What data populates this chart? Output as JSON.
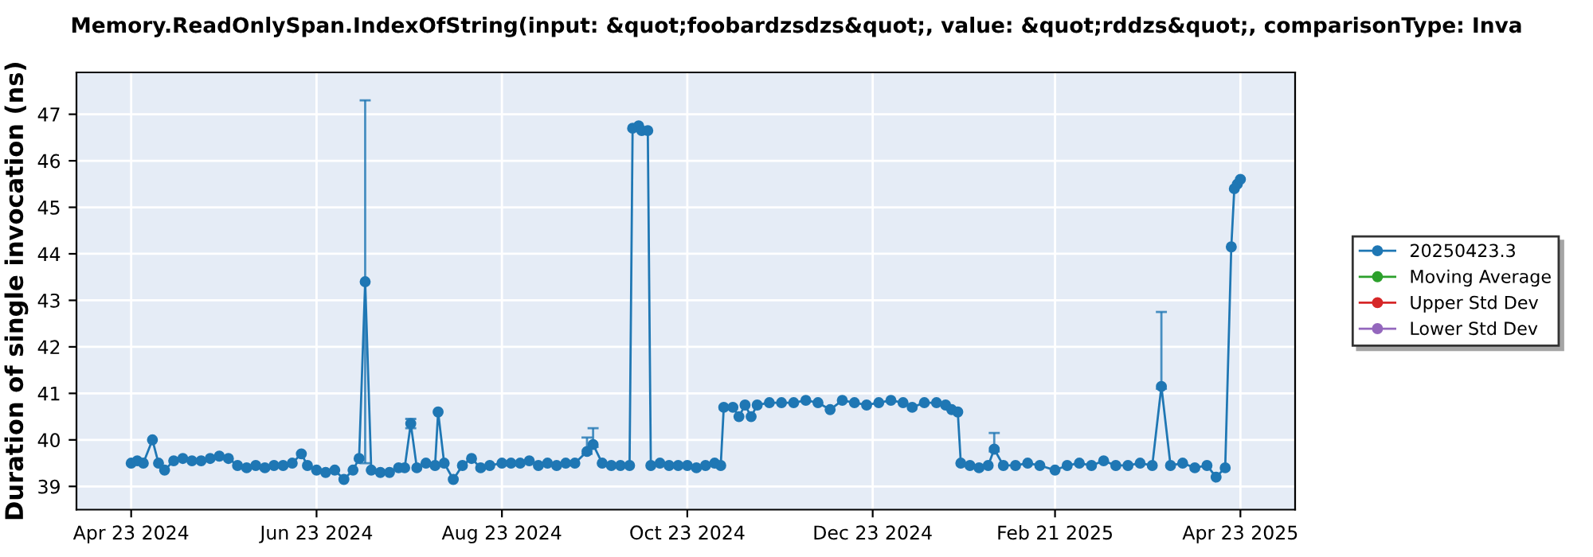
{
  "chart_data": {
    "type": "line",
    "title": "Memory.ReadOnlySpan.IndexOfString(input: &quot;foobardzsdzs&quot;, value: &quot;rddzs&quot;, comparisonType: Inva",
    "ylabel": "Duration of single invocation (ns)",
    "x": [
      "2024-04-23",
      "2024-04-25",
      "2024-04-27",
      "2024-04-30",
      "2024-05-02",
      "2024-05-04",
      "2024-05-07",
      "2024-05-10",
      "2024-05-13",
      "2024-05-16",
      "2024-05-19",
      "2024-05-22",
      "2024-05-25",
      "2024-05-28",
      "2024-05-31",
      "2024-06-03",
      "2024-06-06",
      "2024-06-09",
      "2024-06-12",
      "2024-06-15",
      "2024-06-18",
      "2024-06-20",
      "2024-06-23",
      "2024-06-26",
      "2024-06-29",
      "2024-07-02",
      "2024-07-05",
      "2024-07-07",
      "2024-07-09",
      "2024-07-11",
      "2024-07-14",
      "2024-07-17",
      "2024-07-20",
      "2024-07-22",
      "2024-07-24",
      "2024-07-26",
      "2024-07-29",
      "2024-08-01",
      "2024-08-02",
      "2024-08-04",
      "2024-08-07",
      "2024-08-10",
      "2024-08-13",
      "2024-08-16",
      "2024-08-19",
      "2024-08-23",
      "2024-08-26",
      "2024-08-29",
      "2024-09-01",
      "2024-09-04",
      "2024-09-07",
      "2024-09-10",
      "2024-09-13",
      "2024-09-16",
      "2024-09-20",
      "2024-09-22",
      "2024-09-25",
      "2024-09-28",
      "2024-10-01",
      "2024-10-04",
      "2024-10-05",
      "2024-10-07",
      "2024-10-08",
      "2024-10-10",
      "2024-10-11",
      "2024-10-14",
      "2024-10-17",
      "2024-10-20",
      "2024-10-23",
      "2024-10-26",
      "2024-10-29",
      "2024-11-01",
      "2024-11-03",
      "2024-11-04",
      "2024-11-07",
      "2024-11-09",
      "2024-11-11",
      "2024-11-13",
      "2024-11-15",
      "2024-11-19",
      "2024-11-23",
      "2024-11-27",
      "2024-12-01",
      "2024-12-05",
      "2024-12-09",
      "2024-12-13",
      "2024-12-17",
      "2024-12-21",
      "2024-12-25",
      "2024-12-29",
      "2025-01-02",
      "2025-01-05",
      "2025-01-09",
      "2025-01-13",
      "2025-01-16",
      "2025-01-18",
      "2025-01-20",
      "2025-01-21",
      "2025-01-24",
      "2025-01-27",
      "2025-01-30",
      "2025-02-01",
      "2025-02-04",
      "2025-02-08",
      "2025-02-12",
      "2025-02-16",
      "2025-02-21",
      "2025-02-25",
      "2025-03-01",
      "2025-03-05",
      "2025-03-09",
      "2025-03-13",
      "2025-03-17",
      "2025-03-21",
      "2025-03-25",
      "2025-03-28",
      "2025-03-31",
      "2025-04-04",
      "2025-04-08",
      "2025-04-12",
      "2025-04-15",
      "2025-04-18",
      "2025-04-20",
      "2025-04-21",
      "2025-04-22",
      "2025-04-23"
    ],
    "series": [
      {
        "name": "20250423.3",
        "color": "#1f77b4",
        "values": [
          39.5,
          39.55,
          39.5,
          40.0,
          39.5,
          39.35,
          39.55,
          39.6,
          39.55,
          39.55,
          39.6,
          39.65,
          39.6,
          39.45,
          39.4,
          39.45,
          39.4,
          39.45,
          39.45,
          39.5,
          39.7,
          39.45,
          39.35,
          39.3,
          39.35,
          39.15,
          39.35,
          39.6,
          43.4,
          39.35,
          39.3,
          39.3,
          39.4,
          39.4,
          40.35,
          39.4,
          39.5,
          39.45,
          40.6,
          39.5,
          39.15,
          39.45,
          39.6,
          39.4,
          39.45,
          39.5,
          39.5,
          39.5,
          39.55,
          39.45,
          39.5,
          39.45,
          39.5,
          39.5,
          39.75,
          39.9,
          39.5,
          39.45,
          39.45,
          39.45,
          46.7,
          46.75,
          46.65,
          46.65,
          39.45,
          39.5,
          39.45,
          39.45,
          39.45,
          39.4,
          39.45,
          39.5,
          39.45,
          40.7,
          40.7,
          40.5,
          40.75,
          40.5,
          40.75,
          40.8,
          40.8,
          40.8,
          40.85,
          40.8,
          40.65,
          40.85,
          40.8,
          40.75,
          40.8,
          40.85,
          40.8,
          40.7,
          40.8,
          40.8,
          40.75,
          40.65,
          40.6,
          39.5,
          39.45,
          39.4,
          39.45,
          39.8,
          39.45,
          39.45,
          39.5,
          39.45,
          39.35,
          39.45,
          39.5,
          39.45,
          39.55,
          39.45,
          39.45,
          39.5,
          39.45,
          41.15,
          39.45,
          39.5,
          39.4,
          39.45,
          39.2,
          39.4,
          44.15,
          45.4,
          45.5,
          45.6
        ],
        "errors": [
          null,
          null,
          null,
          null,
          null,
          null,
          null,
          null,
          null,
          null,
          null,
          null,
          null,
          null,
          null,
          null,
          null,
          null,
          null,
          null,
          null,
          null,
          null,
          null,
          null,
          null,
          null,
          null,
          [
            39.5,
            47.3
          ],
          null,
          null,
          null,
          null,
          null,
          [
            40.25,
            40.45
          ],
          null,
          null,
          null,
          null,
          null,
          null,
          null,
          null,
          null,
          null,
          null,
          null,
          null,
          null,
          null,
          null,
          null,
          null,
          null,
          [
            39.7,
            40.05
          ],
          [
            39.85,
            40.25
          ],
          null,
          null,
          null,
          null,
          null,
          null,
          null,
          null,
          null,
          null,
          null,
          null,
          null,
          null,
          null,
          null,
          null,
          null,
          null,
          null,
          null,
          null,
          null,
          null,
          null,
          null,
          null,
          null,
          null,
          null,
          null,
          null,
          null,
          null,
          null,
          null,
          null,
          null,
          null,
          null,
          null,
          null,
          null,
          null,
          null,
          [
            39.75,
            40.15
          ],
          null,
          null,
          null,
          null,
          null,
          null,
          null,
          null,
          null,
          null,
          null,
          null,
          null,
          [
            41.1,
            42.75
          ],
          null,
          null,
          null,
          null,
          null,
          null,
          null,
          null,
          null,
          null
        ]
      },
      {
        "name": "Moving Average",
        "color": "#2ca02c",
        "values": [
          null,
          null,
          null,
          null,
          null,
          null,
          null,
          null,
          null,
          null,
          null,
          null,
          null,
          null,
          null,
          null,
          null,
          null,
          null,
          null,
          null,
          null,
          null,
          null,
          null,
          null,
          null,
          null,
          null,
          null,
          null,
          null,
          null,
          null,
          null,
          null,
          null,
          null,
          null,
          null,
          null,
          null,
          null,
          null,
          null,
          null,
          null,
          null,
          null,
          null,
          null,
          null,
          null,
          null,
          null,
          null,
          null,
          null,
          null,
          null,
          null,
          null,
          null,
          null,
          null,
          null,
          null,
          null,
          null,
          null,
          null,
          null,
          null,
          null,
          null,
          null,
          null,
          null,
          null,
          null,
          null,
          null,
          null,
          null,
          null,
          null,
          null,
          null,
          null,
          null,
          null,
          null,
          null,
          null,
          null,
          null,
          null,
          null,
          null,
          null,
          null,
          null,
          null,
          null,
          null,
          null,
          null,
          null,
          null,
          null,
          null,
          null,
          null,
          null,
          null,
          null,
          null,
          null,
          null,
          null,
          null,
          null,
          null,
          null,
          null,
          null
        ]
      },
      {
        "name": "Upper Std Dev",
        "color": "#d62728",
        "values": [
          null,
          null,
          null,
          null,
          null,
          null,
          null,
          null,
          null,
          null,
          null,
          null,
          null,
          null,
          null,
          null,
          null,
          null,
          null,
          null,
          null,
          null,
          null,
          null,
          null,
          null,
          null,
          null,
          null,
          null,
          null,
          null,
          null,
          null,
          null,
          null,
          null,
          null,
          null,
          null,
          null,
          null,
          null,
          null,
          null,
          null,
          null,
          null,
          null,
          null,
          null,
          null,
          null,
          null,
          null,
          null,
          null,
          null,
          null,
          null,
          null,
          null,
          null,
          null,
          null,
          null,
          null,
          null,
          null,
          null,
          null,
          null,
          null,
          null,
          null,
          null,
          null,
          null,
          null,
          null,
          null,
          null,
          null,
          null,
          null,
          null,
          null,
          null,
          null,
          null,
          null,
          null,
          null,
          null,
          null,
          null,
          null,
          null,
          null,
          null,
          null,
          null,
          null,
          null,
          null,
          null,
          null,
          null,
          null,
          null,
          null,
          null,
          null,
          null,
          null,
          null,
          null,
          null,
          null,
          null,
          null,
          null,
          null,
          null,
          null,
          null
        ]
      },
      {
        "name": "Lower Std Dev",
        "color": "#9467bd",
        "values": [
          null,
          null,
          null,
          null,
          null,
          null,
          null,
          null,
          null,
          null,
          null,
          null,
          null,
          null,
          null,
          null,
          null,
          null,
          null,
          null,
          null,
          null,
          null,
          null,
          null,
          null,
          null,
          null,
          null,
          null,
          null,
          null,
          null,
          null,
          null,
          null,
          null,
          null,
          null,
          null,
          null,
          null,
          null,
          null,
          null,
          null,
          null,
          null,
          null,
          null,
          null,
          null,
          null,
          null,
          null,
          null,
          null,
          null,
          null,
          null,
          null,
          null,
          null,
          null,
          null,
          null,
          null,
          null,
          null,
          null,
          null,
          null,
          null,
          null,
          null,
          null,
          null,
          null,
          null,
          null,
          null,
          null,
          null,
          null,
          null,
          null,
          null,
          null,
          null,
          null,
          null,
          null,
          null,
          null,
          null,
          null,
          null,
          null,
          null,
          null,
          null,
          null,
          null,
          null,
          null,
          null,
          null,
          null,
          null,
          null,
          null,
          null,
          null,
          null,
          null,
          null,
          null,
          null,
          null,
          null,
          null,
          null,
          null,
          null,
          null,
          null
        ]
      }
    ],
    "xlim": [
      "2024-04-05",
      "2025-05-11"
    ],
    "xticks": [
      {
        "value": "2024-04-23",
        "label": "Apr 23 2024"
      },
      {
        "value": "2024-06-23",
        "label": "Jun 23 2024"
      },
      {
        "value": "2024-08-23",
        "label": "Aug 23 2024"
      },
      {
        "value": "2024-10-23",
        "label": "Oct 23 2024"
      },
      {
        "value": "2024-12-23",
        "label": "Dec 23 2024"
      },
      {
        "value": "2025-02-21",
        "label": "Feb 21 2025"
      },
      {
        "value": "2025-04-23",
        "label": "Apr 23 2025"
      }
    ],
    "ylim": [
      38.5,
      47.9
    ],
    "yticks": [
      39,
      40,
      41,
      42,
      43,
      44,
      45,
      46,
      47
    ],
    "grid": true,
    "legend": "right",
    "marker": "circle",
    "line_style": "solid"
  }
}
